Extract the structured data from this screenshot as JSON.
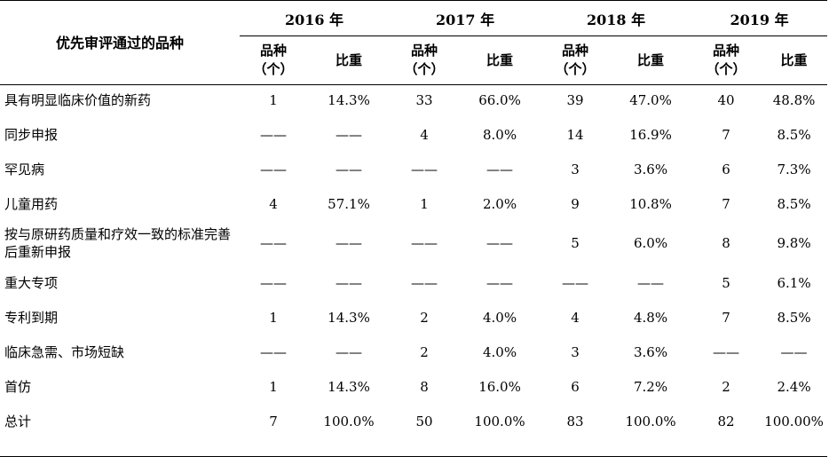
{
  "table": {
    "category_header": "优先审评通过的品种",
    "years": [
      "2016 年",
      "2017 年",
      "2018 年",
      "2019 年"
    ],
    "sub_headers": {
      "count": "品种（个）",
      "count_line1": "品种",
      "count_line2": "（个）",
      "share": "比重"
    },
    "rows": [
      {
        "category": "具有明显临床价值的新药",
        "values": [
          "1",
          "14.3%",
          "33",
          "66.0%",
          "39",
          "47.0%",
          "40",
          "48.8%"
        ]
      },
      {
        "category": "同步申报",
        "values": [
          "——",
          "——",
          "4",
          "8.0%",
          "14",
          "16.9%",
          "7",
          "8.5%"
        ]
      },
      {
        "category": "罕见病",
        "values": [
          "——",
          "——",
          "——",
          "——",
          "3",
          "3.6%",
          "6",
          "7.3%"
        ]
      },
      {
        "category": "儿童用药",
        "values": [
          "4",
          "57.1%",
          "1",
          "2.0%",
          "9",
          "10.8%",
          "7",
          "8.5%"
        ]
      },
      {
        "category": "按与原研药质量和疗效一致的标准完善后重新申报",
        "values": [
          "——",
          "——",
          "——",
          "——",
          "5",
          "6.0%",
          "8",
          "9.8%"
        ]
      },
      {
        "category": "重大专项",
        "values": [
          "——",
          "——",
          "——",
          "——",
          "——",
          "——",
          "5",
          "6.1%"
        ]
      },
      {
        "category": "专利到期",
        "values": [
          "1",
          "14.3%",
          "2",
          "4.0%",
          "4",
          "4.8%",
          "7",
          "8.5%"
        ]
      },
      {
        "category": "临床急需、市场短缺",
        "values": [
          "——",
          "——",
          "2",
          "4.0%",
          "3",
          "3.6%",
          "——",
          "——"
        ]
      },
      {
        "category": "首仿",
        "values": [
          "1",
          "14.3%",
          "8",
          "16.0%",
          "6",
          "7.2%",
          "2",
          "2.4%"
        ]
      },
      {
        "category": "总计",
        "values": [
          "7",
          "100.0%",
          "50",
          "100.0%",
          "83",
          "100.0%",
          "82",
          "100.00%"
        ]
      }
    ]
  }
}
